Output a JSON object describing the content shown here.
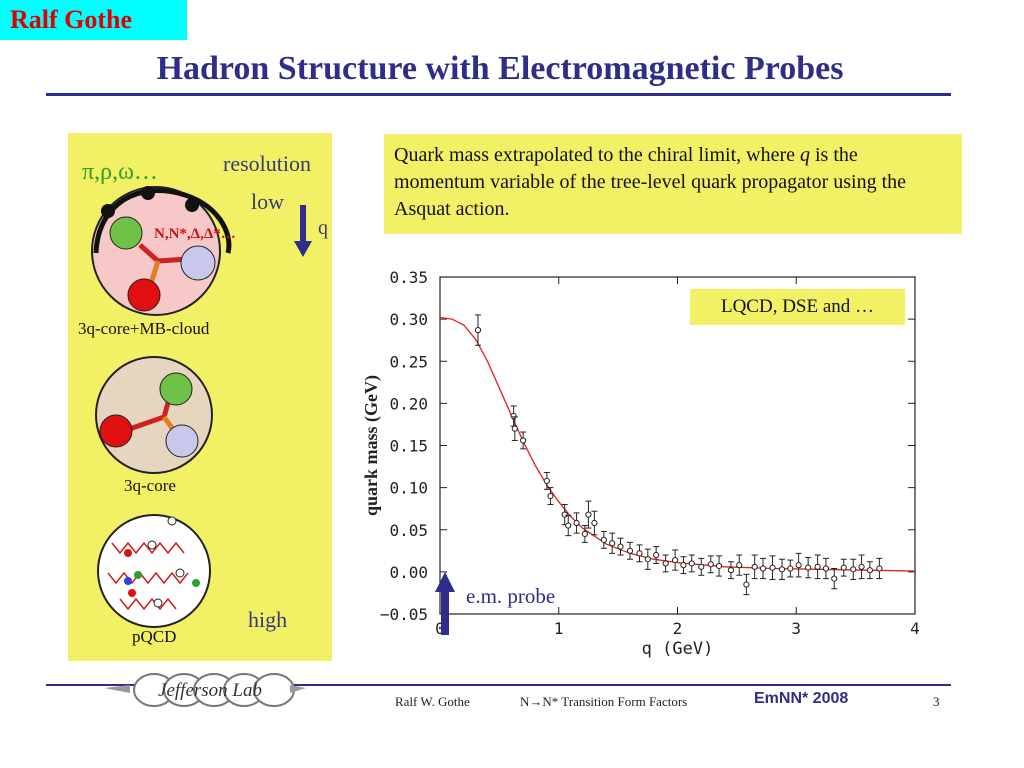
{
  "header": {
    "author_tag": "Ralf Gothe",
    "title": "Hadron Structure with Electromagnetic Probes"
  },
  "left_panel": {
    "mesons": "π,ρ,ω…",
    "resolution": "resolution",
    "low": "low",
    "q": "q",
    "resonances": "N,N*,Δ,Δ*…",
    "label_cloud": "3q-core+MB-cloud",
    "label_core": "3q-core",
    "label_pqcd": "pQCD",
    "high": "high"
  },
  "callout": {
    "text_before": "Quark mass extrapolated to the chiral limit, where ",
    "var": "q",
    "text_after": " is the momentum variable of the tree-level quark propagator using the Asquat action."
  },
  "legend_box": "LQCD, DSE and …",
  "probe_label": "e.m. probe",
  "chart_data": {
    "type": "scatter",
    "xlabel": "q (GeV)",
    "ylabel": "quark mass (GeV)",
    "xlim": [
      0,
      4
    ],
    "ylim": [
      -0.05,
      0.35
    ],
    "xticks": [
      "0",
      "1",
      "2",
      "3",
      "4"
    ],
    "yticks": [
      "−0.05",
      "0.00",
      "0.05",
      "0.10",
      "0.15",
      "0.20",
      "0.25",
      "0.30",
      "0.35"
    ],
    "curve_color": "#e02020",
    "point_color": "#222222",
    "series": [
      {
        "x": [
          0.32,
          0.62,
          0.63,
          0.7,
          0.9,
          0.93,
          1.05,
          1.08,
          1.15,
          1.22,
          1.25,
          1.3,
          1.38,
          1.45,
          1.52,
          1.6,
          1.68,
          1.75,
          1.82,
          1.9,
          1.98,
          2.05,
          2.12,
          2.2,
          2.28,
          2.35,
          2.45,
          2.52,
          2.58,
          2.65,
          2.72,
          2.8,
          2.88,
          2.95,
          3.02,
          3.1,
          3.18,
          3.25,
          3.32,
          3.4,
          3.48,
          3.55,
          3.62,
          3.7
        ],
        "y": [
          0.287,
          0.185,
          0.17,
          0.156,
          0.108,
          0.09,
          0.068,
          0.055,
          0.058,
          0.045,
          0.068,
          0.058,
          0.038,
          0.034,
          0.03,
          0.025,
          0.022,
          0.015,
          0.02,
          0.01,
          0.014,
          0.008,
          0.01,
          0.006,
          0.009,
          0.007,
          0.002,
          0.008,
          -0.015,
          0.006,
          0.004,
          0.005,
          0.003,
          0.004,
          0.008,
          0.005,
          0.006,
          0.004,
          -0.008,
          0.005,
          0.003,
          0.006,
          0.002,
          0.004
        ],
        "err": [
          0.018,
          0.012,
          0.014,
          0.01,
          0.01,
          0.01,
          0.012,
          0.012,
          0.012,
          0.01,
          0.016,
          0.014,
          0.01,
          0.012,
          0.01,
          0.01,
          0.01,
          0.012,
          0.01,
          0.01,
          0.012,
          0.01,
          0.01,
          0.01,
          0.01,
          0.012,
          0.01,
          0.012,
          0.012,
          0.014,
          0.012,
          0.014,
          0.012,
          0.01,
          0.014,
          0.012,
          0.014,
          0.012,
          0.012,
          0.01,
          0.012,
          0.014,
          0.01,
          0.012
        ]
      }
    ],
    "curve": {
      "x": [
        0,
        0.1,
        0.2,
        0.3,
        0.4,
        0.5,
        0.6,
        0.7,
        0.8,
        0.9,
        1.0,
        1.1,
        1.2,
        1.4,
        1.6,
        1.8,
        2.0,
        2.4,
        2.8,
        3.2,
        3.6,
        4.0
      ],
      "y": [
        0.302,
        0.3,
        0.293,
        0.276,
        0.25,
        0.218,
        0.186,
        0.155,
        0.127,
        0.103,
        0.083,
        0.066,
        0.052,
        0.033,
        0.022,
        0.015,
        0.011,
        0.006,
        0.004,
        0.003,
        0.002,
        0.001
      ]
    }
  },
  "footer": {
    "author": "Ralf W. Gothe",
    "talk": "N→N* Transition Form Factors",
    "conference": "EmNN* 2008",
    "page": "3",
    "logo_text": "Jefferson Lab"
  }
}
